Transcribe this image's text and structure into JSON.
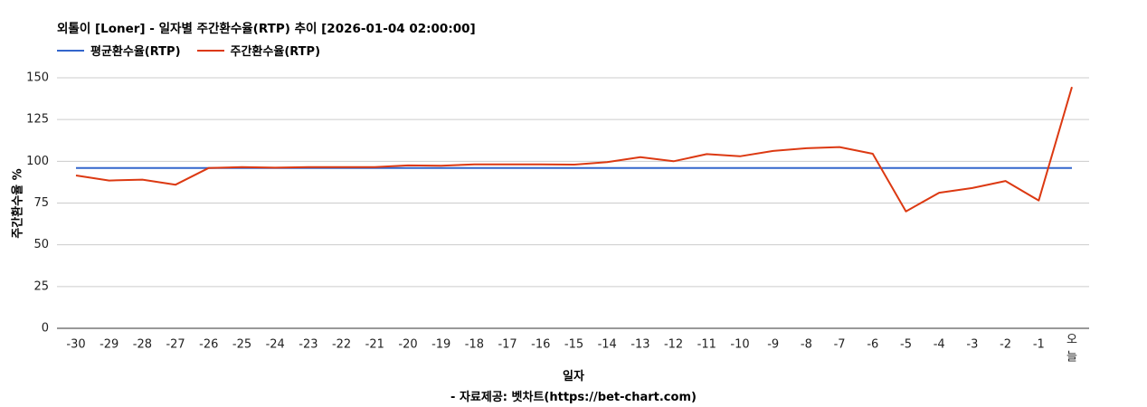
{
  "colors": {
    "avg_series": "#3366cc",
    "weekly_series": "#dc3912",
    "grid": "#cccccc",
    "axis": "#333333"
  },
  "header": {
    "title": "외톨이 [Loner] - 일자별 주간환수율(RTP) 추이 [2026-01-04 02:00:00]"
  },
  "footer": {
    "source": "- 자료제공: 벳차트(https://bet-chart.com)"
  },
  "chart_data": {
    "type": "line",
    "title": "외톨이 [Loner] - 일자별 주간환수율(RTP) 추이 [2026-01-04 02:00:00]",
    "xlabel": "일자",
    "ylabel": "주간환수율 %",
    "ylim": [
      0,
      150
    ],
    "yticks": [
      "0",
      "25",
      "50",
      "75",
      "100",
      "125",
      "150"
    ],
    "grid": true,
    "legend_position": "top-left",
    "categories": [
      "-30",
      "-29",
      "-28",
      "-27",
      "-26",
      "-25",
      "-24",
      "-23",
      "-22",
      "-21",
      "-20",
      "-19",
      "-18",
      "-17",
      "-16",
      "-15",
      "-14",
      "-13",
      "-12",
      "-11",
      "-10",
      "-9",
      "-8",
      "-7",
      "-6",
      "-5",
      "-4",
      "-3",
      "-2",
      "-1",
      "오늘"
    ],
    "series": [
      {
        "name": "평균환수율(RTP)",
        "color": "#3366cc",
        "values": [
          96,
          96,
          96,
          96,
          96,
          96,
          96,
          96,
          96,
          96,
          96,
          96,
          96,
          96,
          96,
          96,
          96,
          96,
          96,
          96,
          96,
          96,
          96,
          96,
          96,
          96,
          96,
          96,
          96,
          96,
          96
        ]
      },
      {
        "name": "주간환수율(RTP)",
        "color": "#dc3912",
        "values": [
          91.5,
          88.5,
          89,
          86,
          96,
          96.5,
          96.2,
          96.5,
          96.5,
          96.5,
          97.5,
          97.3,
          98.2,
          98.2,
          98.2,
          98,
          99.5,
          102.5,
          100,
          104.3,
          103,
          106.2,
          107.8,
          108.5,
          104.5,
          70,
          81.2,
          84,
          88.2,
          76.5,
          144.5
        ]
      }
    ]
  }
}
